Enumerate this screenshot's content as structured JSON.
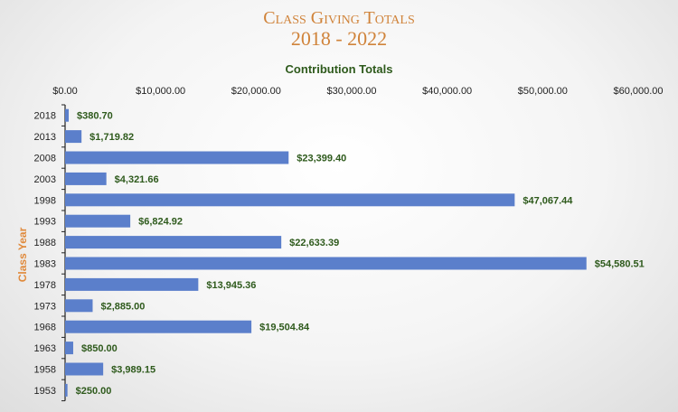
{
  "chart_data": {
    "type": "bar",
    "orientation": "horizontal",
    "title_line1": "Class Giving Totals",
    "title_line2": "2018 - 2022",
    "xlabel": "Contribution Totals",
    "ylabel": "Class Year",
    "x_ticks": [
      "$0.00",
      "$10,000.00",
      "$20,000.00",
      "$30,000.00",
      "$40,000.00",
      "$50,000.00",
      "$60,000.00"
    ],
    "xlim": [
      0,
      60000
    ],
    "x_axis_position": "top",
    "grid": false,
    "bar_color": "#5b7fcb",
    "categories": [
      "2018",
      "2013",
      "2008",
      "2003",
      "1998",
      "1993",
      "1988",
      "1983",
      "1978",
      "1973",
      "1968",
      "1963",
      "1958",
      "1953"
    ],
    "values": [
      380.7,
      1719.82,
      23399.4,
      4321.66,
      47067.44,
      6824.92,
      22633.39,
      54580.51,
      13945.36,
      2885.0,
      19504.84,
      850.0,
      3989.15,
      250.0
    ],
    "data_labels": [
      "$380.70",
      "$1,719.82",
      "$23,399.40",
      "$4,321.66",
      "$47,067.44",
      "$6,824.92",
      "$22,633.39",
      "$54,580.51",
      "$13,945.36",
      "$2,885.00",
      "$19,504.84",
      "$850.00",
      "$3,989.15",
      "$250.00"
    ]
  }
}
